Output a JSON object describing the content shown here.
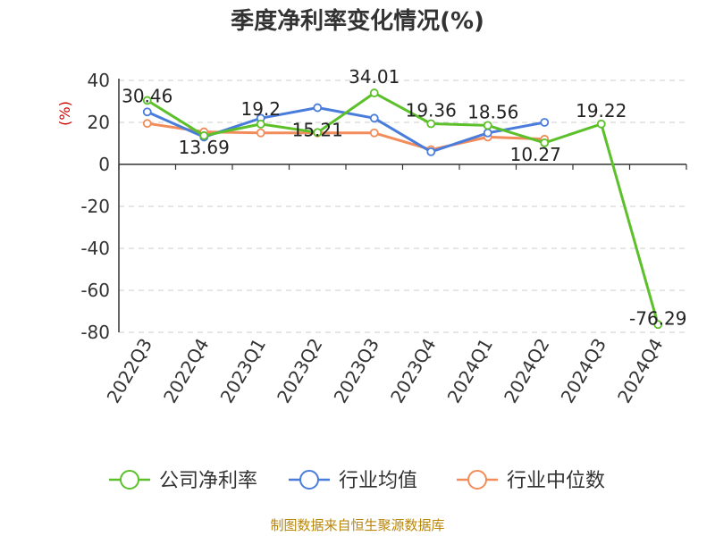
{
  "chart_data": {
    "type": "line",
    "title": "季度净利率变化情况(%)",
    "ylabel": "(%)",
    "ylim": [
      -80,
      40
    ],
    "yticks": [
      40,
      20,
      0,
      -20,
      -40,
      -60,
      -80
    ],
    "grid": true,
    "legend_position": "bottom",
    "categories": [
      "2022Q3",
      "2022Q4",
      "2023Q1",
      "2023Q2",
      "2023Q3",
      "2023Q4",
      "2024Q1",
      "2024Q2",
      "2024Q3",
      "2024Q4"
    ],
    "series": [
      {
        "name": "公司净利率",
        "color": "#5cc02a",
        "values": [
          30.46,
          13.69,
          19.2,
          15.21,
          34.01,
          19.36,
          18.56,
          10.27,
          19.22,
          -76.29
        ],
        "labels": [
          "30.46",
          "13.69",
          "19.2",
          "15.21",
          "34.01",
          "19.36",
          "18.56",
          "10.27",
          "19.22",
          "-76.29"
        ]
      },
      {
        "name": "行业均值",
        "color": "#4a7ddb",
        "values": [
          25,
          13,
          22,
          27,
          22,
          6,
          15,
          20,
          null,
          null
        ]
      },
      {
        "name": "行业中位数",
        "color": "#f28c5a",
        "values": [
          19.5,
          15.5,
          15,
          15,
          15,
          7,
          13,
          12,
          null,
          null
        ]
      }
    ]
  },
  "source": "制图数据来自恒生聚源数据库"
}
